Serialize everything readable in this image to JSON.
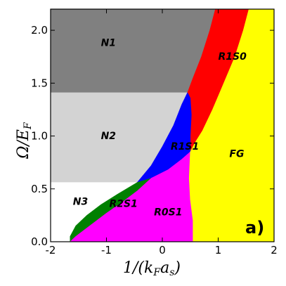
{
  "chart_data": {
    "type": "area",
    "title": "",
    "xlabel": "1/(k_F a_s)",
    "ylabel": "Ω/E_F",
    "xlim": [
      -2.0,
      2.0
    ],
    "ylim": [
      0.0,
      2.2
    ],
    "xticks": [
      -2,
      -1,
      0,
      1,
      2
    ],
    "yticks": [
      0.0,
      0.5,
      1.0,
      1.5,
      2.0
    ],
    "xtick_labels": [
      "-2",
      "-1",
      "0",
      "1",
      "2"
    ],
    "ytick_labels": [
      "0.0",
      "0.5",
      "1.0",
      "1.5",
      "2.0"
    ],
    "panel_label": "a)",
    "grid": false,
    "colors": {
      "N1": "#808080",
      "N2": "#d3d3d3",
      "N3": "#ffffff",
      "R1S0": "#ff0000",
      "R1S1": "#0000ff",
      "R2S1": "#008000",
      "R0S1": "#ff00ff",
      "FG": "#ffff00"
    },
    "regions": [
      {
        "name": "N1",
        "label_pos": [
          -1.1,
          1.85
        ],
        "polygon": [
          [
            -2.0,
            2.2
          ],
          [
            0.95,
            2.2
          ],
          [
            0.85,
            2.0
          ],
          [
            0.7,
            1.75
          ],
          [
            0.55,
            1.55
          ],
          [
            0.45,
            1.41
          ],
          [
            -2.0,
            1.41
          ]
        ]
      },
      {
        "name": "N2",
        "label_pos": [
          -1.1,
          0.97
        ],
        "polygon": [
          [
            -2.0,
            1.41
          ],
          [
            0.45,
            1.41
          ],
          [
            0.35,
            1.3
          ],
          [
            0.2,
            1.1
          ],
          [
            0.0,
            0.9
          ],
          [
            -0.2,
            0.72
          ],
          [
            -0.45,
            0.56
          ],
          [
            -2.0,
            0.56
          ]
        ]
      },
      {
        "name": "N3",
        "label_pos": [
          -1.6,
          0.35
        ],
        "polygon": [
          [
            -2.0,
            0.56
          ],
          [
            -0.45,
            0.56
          ],
          [
            -0.8,
            0.45
          ],
          [
            -1.1,
            0.35
          ],
          [
            -1.35,
            0.25
          ],
          [
            -1.55,
            0.15
          ],
          [
            -1.65,
            0.05
          ],
          [
            -1.65,
            0.0
          ],
          [
            -2.0,
            0.0
          ]
        ]
      },
      {
        "name": "R1S0",
        "label_pos": [
          1.0,
          1.72
        ],
        "polygon": [
          [
            0.95,
            2.2
          ],
          [
            1.55,
            2.2
          ],
          [
            1.45,
            2.0
          ],
          [
            1.3,
            1.75
          ],
          [
            1.1,
            1.5
          ],
          [
            0.9,
            1.25
          ],
          [
            0.72,
            1.05
          ],
          [
            0.6,
            0.95
          ],
          [
            0.5,
            0.85
          ],
          [
            0.5,
            1.0
          ],
          [
            0.52,
            1.2
          ],
          [
            0.5,
            1.36
          ],
          [
            0.45,
            1.41
          ],
          [
            0.55,
            1.55
          ],
          [
            0.7,
            1.75
          ],
          [
            0.85,
            2.0
          ]
        ]
      },
      {
        "name": "R1S1",
        "label_pos": [
          0.15,
          0.87
        ],
        "polygon": [
          [
            0.45,
            1.41
          ],
          [
            0.5,
            1.36
          ],
          [
            0.52,
            1.2
          ],
          [
            0.5,
            1.0
          ],
          [
            0.5,
            0.85
          ],
          [
            0.35,
            0.78
          ],
          [
            0.1,
            0.68
          ],
          [
            -0.2,
            0.6
          ],
          [
            -0.45,
            0.56
          ],
          [
            -0.2,
            0.72
          ],
          [
            0.0,
            0.9
          ],
          [
            0.2,
            1.1
          ],
          [
            0.35,
            1.3
          ]
        ]
      },
      {
        "name": "R2S1",
        "label_pos": [
          -0.95,
          0.33
        ],
        "polygon": [
          [
            -0.45,
            0.56
          ],
          [
            -0.2,
            0.6
          ],
          [
            -0.45,
            0.48
          ],
          [
            -0.7,
            0.38
          ],
          [
            -1.0,
            0.27
          ],
          [
            -1.3,
            0.15
          ],
          [
            -1.55,
            0.05
          ],
          [
            -1.65,
            0.0
          ],
          [
            -1.65,
            0.05
          ],
          [
            -1.55,
            0.15
          ],
          [
            -1.35,
            0.25
          ],
          [
            -1.1,
            0.35
          ],
          [
            -0.8,
            0.45
          ]
        ]
      },
      {
        "name": "R0S1",
        "label_pos": [
          -0.15,
          0.25
        ],
        "polygon": [
          [
            -0.2,
            0.6
          ],
          [
            0.1,
            0.68
          ],
          [
            0.35,
            0.78
          ],
          [
            0.5,
            0.85
          ],
          [
            0.48,
            0.6
          ],
          [
            0.5,
            0.4
          ],
          [
            0.55,
            0.2
          ],
          [
            0.55,
            0.0
          ],
          [
            -1.65,
            0.0
          ],
          [
            -1.55,
            0.05
          ],
          [
            -1.3,
            0.15
          ],
          [
            -1.0,
            0.27
          ],
          [
            -0.7,
            0.38
          ],
          [
            -0.45,
            0.48
          ]
        ]
      },
      {
        "name": "FG",
        "label_pos": [
          1.2,
          0.8
        ],
        "polygon": [
          [
            0.5,
            0.85
          ],
          [
            0.6,
            0.95
          ],
          [
            0.72,
            1.05
          ],
          [
            0.9,
            1.25
          ],
          [
            1.1,
            1.5
          ],
          [
            1.3,
            1.75
          ],
          [
            1.45,
            2.0
          ],
          [
            1.55,
            2.2
          ],
          [
            2.0,
            2.2
          ],
          [
            2.0,
            0.0
          ],
          [
            0.55,
            0.0
          ],
          [
            0.55,
            0.2
          ],
          [
            0.5,
            0.4
          ],
          [
            0.48,
            0.6
          ]
        ]
      }
    ]
  }
}
